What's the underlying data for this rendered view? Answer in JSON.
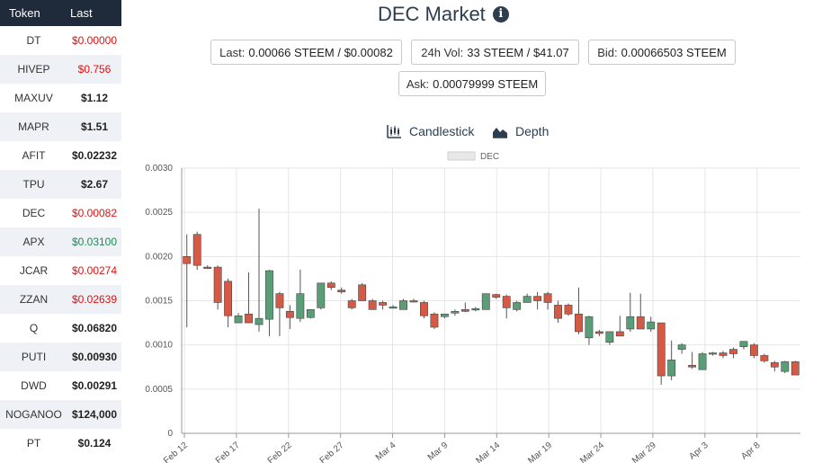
{
  "sidebar": {
    "headers": {
      "token": "Token",
      "last": "Last"
    },
    "rows": [
      {
        "symbol": "DT",
        "last": "$0.00000",
        "trend": "down"
      },
      {
        "symbol": "HIVEP",
        "last": "$0.756",
        "trend": "down"
      },
      {
        "symbol": "MAXUV",
        "last": "$1.12",
        "trend": "flat"
      },
      {
        "symbol": "MAPR",
        "last": "$1.51",
        "trend": "flat"
      },
      {
        "symbol": "AFIT",
        "last": "$0.02232",
        "trend": "flat"
      },
      {
        "symbol": "TPU",
        "last": "$2.67",
        "trend": "flat"
      },
      {
        "symbol": "DEC",
        "last": "$0.00082",
        "trend": "down"
      },
      {
        "symbol": "APX",
        "last": "$0.03100",
        "trend": "up"
      },
      {
        "symbol": "JCAR",
        "last": "$0.00274",
        "trend": "down"
      },
      {
        "symbol": "ZZAN",
        "last": "$0.02639",
        "trend": "down"
      },
      {
        "symbol": "Q",
        "last": "$0.06820",
        "trend": "flat"
      },
      {
        "symbol": "PUTI",
        "last": "$0.00930",
        "trend": "flat"
      },
      {
        "symbol": "DWD",
        "last": "$0.00291",
        "trend": "flat"
      },
      {
        "symbol": "NOGANOO",
        "last": "$124,000",
        "trend": "flat"
      },
      {
        "symbol": "PT",
        "last": "$0.124",
        "trend": "flat"
      }
    ]
  },
  "header": {
    "title": "DEC Market",
    "info_icon": "info-icon"
  },
  "stats": {
    "last": {
      "label": "Last:",
      "value": "0.00066 STEEM / $0.00082"
    },
    "volume": {
      "label": "24h Vol:",
      "value": "33 STEEM / $41.07"
    },
    "bid": {
      "label": "Bid:",
      "value": "0.00066503 STEEM"
    },
    "ask": {
      "label": "Ask:",
      "value": "0.00079999 STEEM"
    }
  },
  "tabs": {
    "candlestick": {
      "label": "Candlestick",
      "icon": "candlestick-icon"
    },
    "depth": {
      "label": "Depth",
      "icon": "depth-chart-icon"
    }
  },
  "colors": {
    "up": "#5a9e78",
    "down": "#d45a46",
    "grid": "#e6e6e6",
    "header_bg": "#1f2b3b"
  },
  "chart_data": {
    "type": "candlestick",
    "legend": "DEC",
    "legend_position": "top-center",
    "grid": true,
    "ylim": [
      0,
      0.003
    ],
    "yticks": [
      "0",
      "0.0005",
      "0.0010",
      "0.0015",
      "0.0020",
      "0.0025",
      "0.0030"
    ],
    "xticks": [
      "Feb 12",
      "Feb 17",
      "Feb 22",
      "Feb 27",
      "Mar 4",
      "Mar 9",
      "Mar 14",
      "Mar 19",
      "Mar 24",
      "Mar 29",
      "Apr 3",
      "Apr 8"
    ],
    "candles": [
      {
        "o": 0.002,
        "h": 0.00225,
        "l": 0.0012,
        "c": 0.00192
      },
      {
        "o": 0.00225,
        "h": 0.00228,
        "l": 0.00185,
        "c": 0.0019
      },
      {
        "o": 0.00188,
        "h": 0.0019,
        "l": 0.00186,
        "c": 0.00187
      },
      {
        "o": 0.00188,
        "h": 0.0019,
        "l": 0.0014,
        "c": 0.00148
      },
      {
        "o": 0.00172,
        "h": 0.00175,
        "l": 0.0012,
        "c": 0.00133
      },
      {
        "o": 0.00125,
        "h": 0.00136,
        "l": 0.00125,
        "c": 0.00133
      },
      {
        "o": 0.00135,
        "h": 0.00182,
        "l": 0.00125,
        "c": 0.00125
      },
      {
        "o": 0.00123,
        "h": 0.00254,
        "l": 0.00115,
        "c": 0.0013
      },
      {
        "o": 0.00129,
        "h": 0.00185,
        "l": 0.0011,
        "c": 0.00184
      },
      {
        "o": 0.00158,
        "h": 0.0016,
        "l": 0.0011,
        "c": 0.00142
      },
      {
        "o": 0.00138,
        "h": 0.00145,
        "l": 0.00118,
        "c": 0.00131
      },
      {
        "o": 0.0013,
        "h": 0.00185,
        "l": 0.00126,
        "c": 0.00158
      },
      {
        "o": 0.00131,
        "h": 0.0014,
        "l": 0.0013,
        "c": 0.0014
      },
      {
        "o": 0.00142,
        "h": 0.0017,
        "l": 0.0014,
        "c": 0.0017
      },
      {
        "o": 0.0017,
        "h": 0.00172,
        "l": 0.00162,
        "c": 0.00165
      },
      {
        "o": 0.00162,
        "h": 0.00165,
        "l": 0.00158,
        "c": 0.0016
      },
      {
        "o": 0.0015,
        "h": 0.00152,
        "l": 0.0014,
        "c": 0.00142
      },
      {
        "o": 0.00168,
        "h": 0.0017,
        "l": 0.0015,
        "c": 0.0015
      },
      {
        "o": 0.0015,
        "h": 0.00152,
        "l": 0.0014,
        "c": 0.0014
      },
      {
        "o": 0.00148,
        "h": 0.0015,
        "l": 0.0014,
        "c": 0.00145
      },
      {
        "o": 0.00143,
        "h": 0.00145,
        "l": 0.00142,
        "c": 0.00143
      },
      {
        "o": 0.0014,
        "h": 0.00152,
        "l": 0.0014,
        "c": 0.0015
      },
      {
        "o": 0.0015,
        "h": 0.00152,
        "l": 0.00148,
        "c": 0.00149
      },
      {
        "o": 0.00148,
        "h": 0.0015,
        "l": 0.0013,
        "c": 0.00133
      },
      {
        "o": 0.00135,
        "h": 0.00137,
        "l": 0.00118,
        "c": 0.0012
      },
      {
        "o": 0.00132,
        "h": 0.00135,
        "l": 0.0013,
        "c": 0.00135
      },
      {
        "o": 0.00136,
        "h": 0.0014,
        "l": 0.00133,
        "c": 0.00138
      },
      {
        "o": 0.0014,
        "h": 0.00148,
        "l": 0.00137,
        "c": 0.00138
      },
      {
        "o": 0.0014,
        "h": 0.00143,
        "l": 0.00138,
        "c": 0.00141
      },
      {
        "o": 0.0014,
        "h": 0.00158,
        "l": 0.0014,
        "c": 0.00158
      },
      {
        "o": 0.00157,
        "h": 0.00158,
        "l": 0.00152,
        "c": 0.00154
      },
      {
        "o": 0.00155,
        "h": 0.00157,
        "l": 0.0013,
        "c": 0.00142
      },
      {
        "o": 0.0014,
        "h": 0.0015,
        "l": 0.00138,
        "c": 0.00148
      },
      {
        "o": 0.00148,
        "h": 0.00158,
        "l": 0.00148,
        "c": 0.00155
      },
      {
        "o": 0.00155,
        "h": 0.0016,
        "l": 0.0014,
        "c": 0.0015
      },
      {
        "o": 0.00158,
        "h": 0.0016,
        "l": 0.0014,
        "c": 0.00148
      },
      {
        "o": 0.00145,
        "h": 0.0015,
        "l": 0.00125,
        "c": 0.0013
      },
      {
        "o": 0.00145,
        "h": 0.00147,
        "l": 0.00133,
        "c": 0.00135
      },
      {
        "o": 0.00135,
        "h": 0.00165,
        "l": 0.00112,
        "c": 0.00115
      },
      {
        "o": 0.00108,
        "h": 0.00133,
        "l": 0.001,
        "c": 0.00132
      },
      {
        "o": 0.00115,
        "h": 0.00117,
        "l": 0.0011,
        "c": 0.00113
      },
      {
        "o": 0.00103,
        "h": 0.00115,
        "l": 0.001,
        "c": 0.00115
      },
      {
        "o": 0.00115,
        "h": 0.00133,
        "l": 0.0011,
        "c": 0.0011
      },
      {
        "o": 0.00118,
        "h": 0.00159,
        "l": 0.00115,
        "c": 0.00132
      },
      {
        "o": 0.00132,
        "h": 0.00158,
        "l": 0.00118,
        "c": 0.00118
      },
      {
        "o": 0.00118,
        "h": 0.00132,
        "l": 0.00115,
        "c": 0.00126
      },
      {
        "o": 0.00125,
        "h": 0.00125,
        "l": 0.00055,
        "c": 0.00065
      },
      {
        "o": 0.00065,
        "h": 0.00105,
        "l": 0.0006,
        "c": 0.00083
      },
      {
        "o": 0.00095,
        "h": 0.00102,
        "l": 0.0009,
        "c": 0.001
      },
      {
        "o": 0.00077,
        "h": 0.00092,
        "l": 0.00073,
        "c": 0.00075
      },
      {
        "o": 0.00072,
        "h": 0.00092,
        "l": 0.00072,
        "c": 0.0009
      },
      {
        "o": 0.0009,
        "h": 0.00092,
        "l": 0.00088,
        "c": 0.00091
      },
      {
        "o": 0.00091,
        "h": 0.00093,
        "l": 0.00085,
        "c": 0.00088
      },
      {
        "o": 0.00095,
        "h": 0.00097,
        "l": 0.00085,
        "c": 0.0009
      },
      {
        "o": 0.00098,
        "h": 0.00104,
        "l": 0.00095,
        "c": 0.00104
      },
      {
        "o": 0.001,
        "h": 0.00102,
        "l": 0.00085,
        "c": 0.00088
      },
      {
        "o": 0.00088,
        "h": 0.0009,
        "l": 0.0008,
        "c": 0.00082
      },
      {
        "o": 0.0008,
        "h": 0.00082,
        "l": 0.0007,
        "c": 0.00075
      },
      {
        "o": 0.0007,
        "h": 0.00082,
        "l": 0.00068,
        "c": 0.00081
      },
      {
        "o": 0.00081,
        "h": 0.00082,
        "l": 0.00066,
        "c": 0.00066
      }
    ]
  }
}
